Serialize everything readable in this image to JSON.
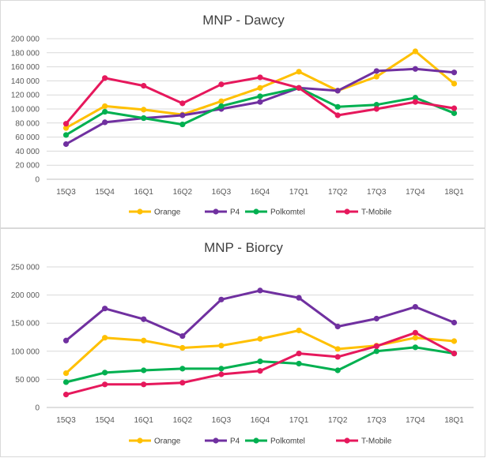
{
  "chart_data": [
    {
      "type": "line",
      "title": "MNP - Dawcy",
      "categories": [
        "15Q3",
        "15Q4",
        "16Q1",
        "16Q2",
        "16Q3",
        "16Q4",
        "17Q1",
        "17Q2",
        "17Q3",
        "17Q4",
        "18Q1"
      ],
      "ylim": [
        0,
        200000
      ],
      "yticks": [
        0,
        20000,
        40000,
        60000,
        80000,
        100000,
        120000,
        140000,
        160000,
        180000,
        200000
      ],
      "ytick_labels": [
        "0",
        "20 000",
        "40 000",
        "60 000",
        "80 000",
        "100 000",
        "120 000",
        "140 000",
        "160 000",
        "180 000",
        "200 000"
      ],
      "grid": true,
      "legend": "bottom",
      "series": [
        {
          "name": "Orange",
          "color": "#FFC000",
          "values": [
            73000,
            104000,
            99000,
            92000,
            111000,
            130000,
            153000,
            126000,
            146000,
            182000,
            136000
          ]
        },
        {
          "name": "P4",
          "color": "#7030A0",
          "values": [
            50000,
            81000,
            87000,
            91000,
            100000,
            110000,
            130000,
            126000,
            154000,
            157000,
            152000
          ]
        },
        {
          "name": "Polkomtel",
          "color": "#00B050",
          "values": [
            63000,
            96000,
            87000,
            78000,
            104000,
            118000,
            130000,
            103000,
            106000,
            116000,
            94000
          ]
        },
        {
          "name": "T-Mobile",
          "color": "#E6185C",
          "values": [
            79000,
            144000,
            133000,
            108000,
            135000,
            145000,
            130000,
            91000,
            100000,
            110000,
            101000
          ]
        }
      ]
    },
    {
      "type": "line",
      "title": "MNP - Biorcy",
      "categories": [
        "15Q3",
        "15Q4",
        "16Q1",
        "16Q2",
        "16Q3",
        "16Q4",
        "17Q1",
        "17Q2",
        "17Q3",
        "17Q4",
        "18Q1"
      ],
      "ylim": [
        0,
        250000
      ],
      "yticks": [
        0,
        50000,
        100000,
        150000,
        200000,
        250000
      ],
      "ytick_labels": [
        "0",
        "50 000",
        "100 000",
        "150 000",
        "200 000",
        "250 000"
      ],
      "grid": true,
      "legend": "bottom",
      "series": [
        {
          "name": "Orange",
          "color": "#FFC000",
          "values": [
            61000,
            124000,
            119000,
            106000,
            110000,
            122000,
            137000,
            104000,
            110000,
            124000,
            118000
          ]
        },
        {
          "name": "P4",
          "color": "#7030A0",
          "values": [
            119000,
            176000,
            157000,
            127000,
            192000,
            208000,
            195000,
            144000,
            158000,
            179000,
            151000
          ]
        },
        {
          "name": "Polkomtel",
          "color": "#00B050",
          "values": [
            45000,
            62000,
            66000,
            69000,
            69000,
            82000,
            78000,
            66000,
            100000,
            107000,
            96000
          ]
        },
        {
          "name": "T-Mobile",
          "color": "#E6185C",
          "values": [
            23000,
            41000,
            41000,
            44000,
            59000,
            65000,
            96000,
            90000,
            109000,
            133000,
            96000
          ]
        }
      ]
    }
  ]
}
